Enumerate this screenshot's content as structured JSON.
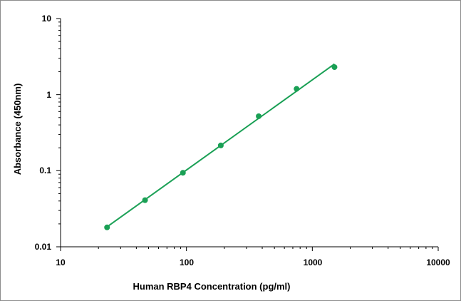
{
  "chart_data": {
    "type": "scatter",
    "x_scale": "log",
    "y_scale": "log",
    "xlabel": "Human RBP4 Concentration (pg/ml)",
    "ylabel": "Absorbance (450nm)",
    "xlim": [
      10,
      10000
    ],
    "ylim": [
      0.01,
      10
    ],
    "x_tick_labels": [
      "10",
      "100",
      "1000",
      "10000"
    ],
    "y_tick_labels": [
      "10",
      "1",
      "0.1",
      "0.01"
    ],
    "grid": false,
    "legend": "none",
    "series": [
      {
        "x": [
          23.4,
          46.9,
          93.8,
          187.5,
          375,
          750,
          1500
        ],
        "y": [
          0.018,
          0.041,
          0.094,
          0.215,
          0.52,
          1.19,
          2.3
        ],
        "color": "#1aa055",
        "trendline": true
      }
    ]
  }
}
